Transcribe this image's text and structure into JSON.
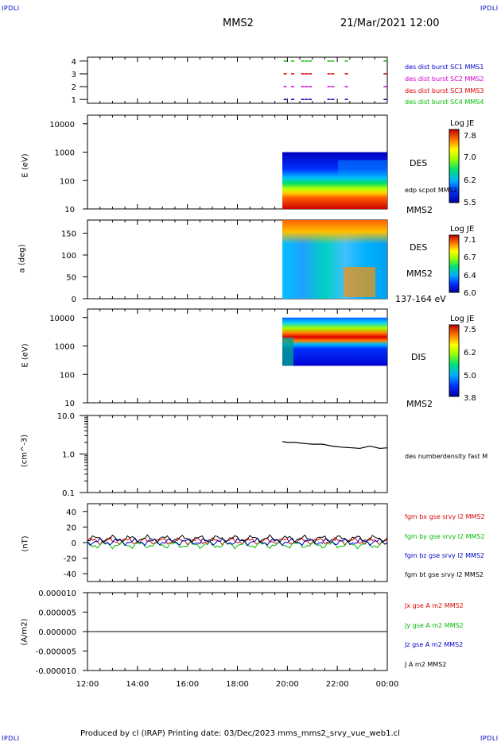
{
  "header": {
    "corner_text": "IPDLI",
    "title": "MMS2",
    "datetime": "21/Mar/2021 12:00"
  },
  "footer": {
    "text": "Produced by cl (IRAP)   Printing date: 03/Dec/2023   mms_mms2_srvy_vue_web1.cl"
  },
  "colors": {
    "blue": "#0000cc",
    "magenta": "#cc00cc",
    "red": "#dd0000",
    "green": "#00bb00",
    "black": "#000000"
  },
  "chart_data": [
    {
      "id": "panel1",
      "type": "scatter",
      "yticks": [
        "1",
        "2",
        "3",
        "4"
      ],
      "ylim": [
        0.7,
        4.3
      ],
      "xlim": [
        0,
        12
      ],
      "x": [
        7.85,
        8.15,
        8.55,
        8.7,
        8.85,
        9.6,
        9.75,
        10.3,
        11.85
      ],
      "series": [
        {
          "name": "des dist burst SC1 MMS1",
          "color": "#0000cc",
          "y": 1
        },
        {
          "name": "des dist burst SC2 MMS2",
          "color": "#cc00cc",
          "y": 2
        },
        {
          "name": "des dist burst SC3 MMS3",
          "color": "#dd0000",
          "y": 3
        },
        {
          "name": "des dist burst SC4 MMS4",
          "color": "#00bb00",
          "y": 4
        }
      ]
    },
    {
      "id": "panel2",
      "type": "heatmap",
      "ylabel": "E (eV)",
      "yticks": [
        "10",
        "100",
        "1000",
        "10000"
      ],
      "ylim_log": [
        10,
        20000
      ],
      "xlim": [
        0,
        12
      ],
      "data_x_range": [
        7.8,
        12
      ],
      "data_y_range": [
        10,
        1000
      ],
      "side_label": "DES",
      "side_label2": "edp scpot MMS2",
      "sc_label": "MMS2",
      "colorbar": {
        "title": "Log JE",
        "ticks": [
          "7.8",
          "7.0",
          "6.2",
          "5.5"
        ]
      }
    },
    {
      "id": "panel3",
      "type": "heatmap",
      "ylabel": "a (deg)",
      "yticks": [
        "0",
        "50",
        "100",
        "150"
      ],
      "ylim": [
        0,
        180
      ],
      "xlim": [
        0,
        12
      ],
      "data_x_range": [
        7.8,
        12
      ],
      "side_label": "DES",
      "sc_label": "MMS2",
      "energy_label": "137-164 eV",
      "colorbar": {
        "title": "Log JE",
        "ticks": [
          "7.1",
          "6.7",
          "6.4",
          "6.0"
        ]
      }
    },
    {
      "id": "panel4",
      "type": "heatmap",
      "ylabel": "E (eV)",
      "yticks": [
        "10",
        "100",
        "1000",
        "10000"
      ],
      "ylim_log": [
        10,
        20000
      ],
      "xlim": [
        0,
        12
      ],
      "data_x_range": [
        7.8,
        12
      ],
      "data_y_range": [
        200,
        10000
      ],
      "side_label": "DIS",
      "sc_label": "MMS2",
      "colorbar": {
        "title": "Log JE",
        "ticks": [
          "7.5",
          "6.2",
          "5.0",
          "3.8"
        ]
      }
    },
    {
      "id": "panel5",
      "type": "line",
      "ylabel": "(cm^-3)",
      "yticks": [
        "0.1",
        "1.0",
        "10.0"
      ],
      "ylim_log": [
        0.1,
        10
      ],
      "xlim": [
        0,
        12
      ],
      "series": [
        {
          "name": "des numberdensity fast M",
          "color": "#000000",
          "x": [
            7.8,
            8.0,
            8.3,
            8.6,
            9.0,
            9.4,
            9.8,
            10.2,
            10.6,
            10.9,
            11.1,
            11.3,
            11.5,
            11.7,
            12.0
          ],
          "y": [
            2.1,
            2.0,
            2.0,
            1.9,
            1.8,
            1.8,
            1.6,
            1.5,
            1.45,
            1.4,
            1.5,
            1.6,
            1.5,
            1.4,
            1.45
          ]
        }
      ]
    },
    {
      "id": "panel6",
      "type": "line",
      "ylabel": "(nT)",
      "yticks": [
        "-40",
        "-20",
        "0",
        "20",
        "40"
      ],
      "ylim": [
        -50,
        50
      ],
      "xlim": [
        0,
        12
      ],
      "series": [
        {
          "name": "fgm bx gse srvy l2 MMS2",
          "color": "#dd0000",
          "level": 2
        },
        {
          "name": "fgm by gse srvy l2 MMS2",
          "color": "#00bb00",
          "level": -3
        },
        {
          "name": "fgm bz gse srvy l2 MMS2",
          "color": "#0000cc",
          "level": 1
        },
        {
          "name": "fgm bt gse srvy l2 MMS2",
          "color": "#000000",
          "level": 5
        }
      ]
    },
    {
      "id": "panel7",
      "type": "line",
      "ylabel": "(A/m2)",
      "yticks": [
        "-0.000010",
        "-0.000005",
        "0.000000",
        "0.000005",
        "0.000010"
      ],
      "ylim": [
        -1e-05,
        1e-05
      ],
      "xlim": [
        0,
        12
      ],
      "xticks": [
        "12:00",
        "14:00",
        "16:00",
        "18:00",
        "20:00",
        "22:00",
        "00:00"
      ],
      "series": [
        {
          "name": "Jx gse A m2 MMS2",
          "color": "#dd0000"
        },
        {
          "name": "Jy gse A m2 MMS2",
          "color": "#00bb00"
        },
        {
          "name": "Jz gse A m2 MMS2",
          "color": "#0000cc"
        },
        {
          "name": "J A m2 MMS2",
          "color": "#000000"
        }
      ]
    }
  ]
}
